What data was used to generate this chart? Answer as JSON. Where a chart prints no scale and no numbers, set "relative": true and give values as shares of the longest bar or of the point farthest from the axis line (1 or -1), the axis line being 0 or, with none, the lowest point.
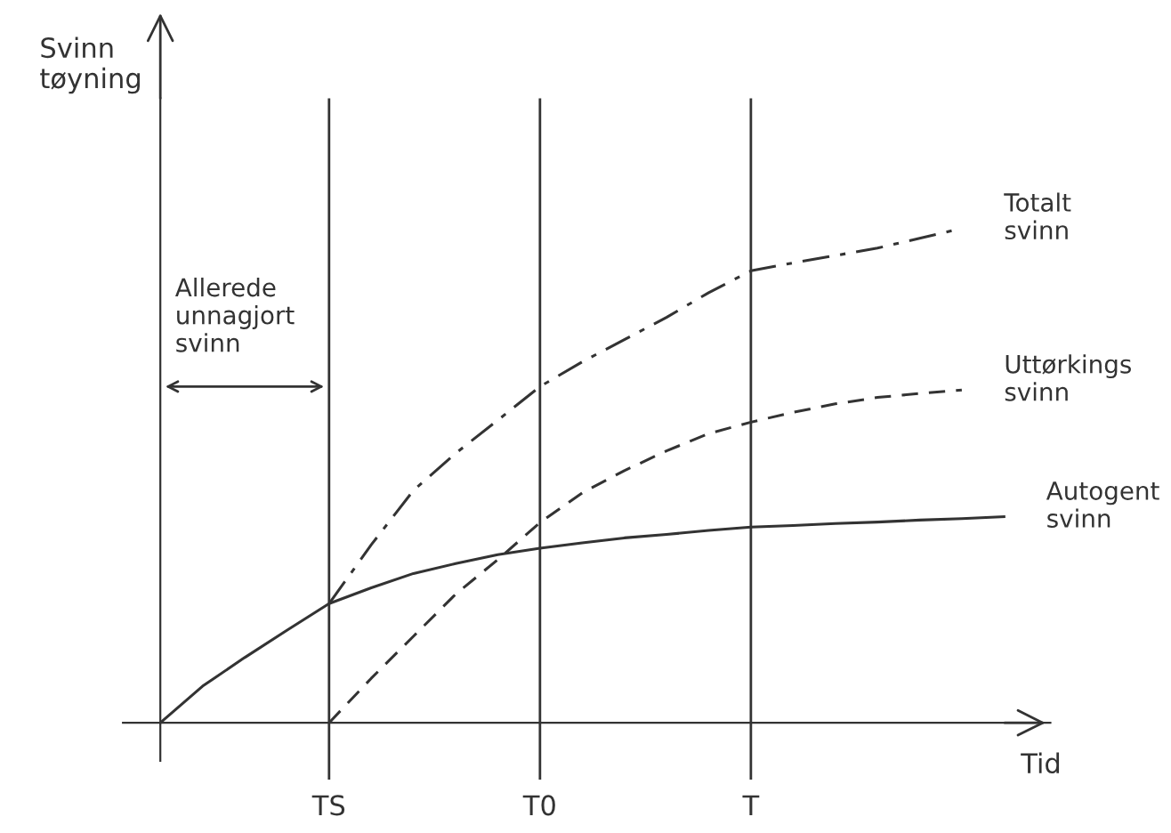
{
  "chart_data": {
    "type": "line",
    "relative": true,
    "ylabel": "Svinn\ntøyning",
    "xlabel": "Tid",
    "grid": "x",
    "legend": false,
    "marker": "none",
    "categories": [
      null,
      null,
      null,
      null,
      "TS",
      null,
      null,
      null,
      null,
      "T0",
      null,
      null,
      null,
      null,
      "T",
      null,
      null,
      null,
      null,
      null,
      null
    ],
    "annotations": [
      "Allerede\nunnagjort\nsvinn"
    ],
    "series": [
      {
        "name": "Totalt\nsvinn",
        "color": "#333333",
        "line_style": "dashdot",
        "values": [
          null,
          null,
          null,
          null,
          0.241,
          0.36,
          0.47,
          0.545,
          0.612,
          0.68,
          0.73,
          0.775,
          0.82,
          0.87,
          0.914,
          0.93,
          0.945,
          0.96,
          0.98,
          1.0,
          null
        ]
      },
      {
        "name": "Uttørkings\nsvinn",
        "color": "#333333",
        "line_style": "dashed",
        "values": [
          null,
          null,
          null,
          null,
          0,
          0.09,
          0.175,
          0.26,
          0.33,
          0.405,
          0.465,
          0.51,
          0.55,
          0.585,
          0.608,
          0.628,
          0.645,
          0.658,
          0.666,
          0.673,
          null
        ]
      },
      {
        "name": "Autogent\nsvinn",
        "color": "#333333",
        "line_style": "solid",
        "values": [
          0,
          0.074,
          0.132,
          0.187,
          0.241,
          0.273,
          0.302,
          0.322,
          0.34,
          0.353,
          0.364,
          0.374,
          0.381,
          0.389,
          0.396,
          0.399,
          0.403,
          0.406,
          0.41,
          0.413,
          0.417
        ]
      }
    ]
  }
}
